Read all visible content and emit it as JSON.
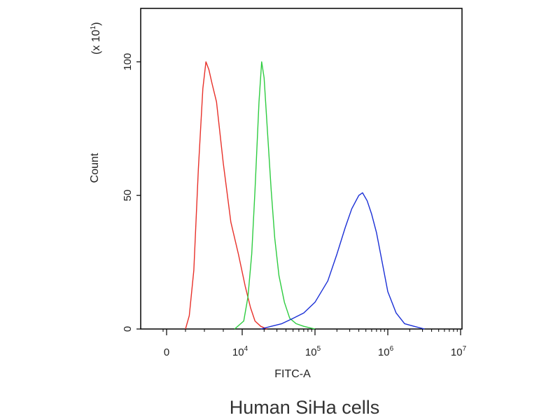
{
  "chart_data": {
    "type": "line",
    "title": "",
    "xlabel": "FITC-A",
    "ylabel": "Count",
    "y_multiplier_label": "(x 10",
    "y_multiplier_exponent": "1",
    "y_multiplier_close": ")",
    "caption": "Human SiHa cells",
    "x_scale": "biexponential",
    "xlim": [
      -2000,
      10000000
    ],
    "ylim": [
      0,
      120
    ],
    "x_ticks": [
      {
        "value": 0,
        "base": "0",
        "exp": ""
      },
      {
        "value": 10000,
        "base": "10",
        "exp": "4"
      },
      {
        "value": 100000,
        "base": "10",
        "exp": "5"
      },
      {
        "value": 1000000,
        "base": "10",
        "exp": "6"
      },
      {
        "value": 10000000,
        "base": "10",
        "exp": "7"
      }
    ],
    "y_ticks": [
      {
        "value": 0,
        "label": "0"
      },
      {
        "value": 50,
        "label": "50"
      },
      {
        "value": 100,
        "label": "100"
      }
    ],
    "grid": false,
    "legend": "none",
    "series": [
      {
        "color": "#e8312a",
        "x": [
          2500,
          3000,
          3600,
          4200,
          4800,
          5200,
          5600,
          6000,
          6600,
          7500,
          8500,
          9500,
          11000,
          13000,
          15000,
          18000,
          22000
        ],
        "y": [
          0,
          5,
          22,
          60,
          90,
          100,
          97,
          92,
          85,
          62,
          40,
          28,
          16,
          8,
          3,
          1,
          0
        ]
      },
      {
        "color": "#2ecc40",
        "x": [
          9000,
          10500,
          12000,
          13500,
          15000,
          17000,
          18500,
          20000,
          22000,
          25000,
          28000,
          32000,
          38000,
          45000,
          55000,
          70000,
          100000
        ],
        "y": [
          0,
          3,
          12,
          28,
          52,
          85,
          100,
          94,
          76,
          52,
          34,
          20,
          10,
          4,
          2,
          1,
          0
        ]
      },
      {
        "color": "#1a2fd6",
        "x": [
          18000,
          25000,
          35000,
          50000,
          70000,
          100000,
          150000,
          200000,
          260000,
          320000,
          400000,
          450000,
          520000,
          600000,
          700000,
          850000,
          1000000,
          1300000,
          1700000,
          2300000,
          3200000
        ],
        "y": [
          0,
          1,
          2,
          4,
          6,
          10,
          18,
          28,
          38,
          45,
          50,
          51,
          48,
          43,
          36,
          24,
          14,
          6,
          2,
          1,
          0
        ]
      }
    ]
  }
}
